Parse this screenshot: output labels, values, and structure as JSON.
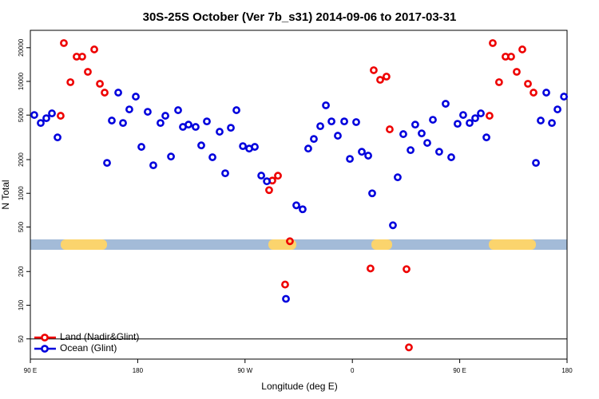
{
  "chart_data": {
    "type": "scatter",
    "title": "30S-25S October (Ver 7b_s31)   2014-09-06 to 2017-03-31",
    "x_label": "Longitude (deg E)",
    "y_label": "N Total",
    "y_scale": "log",
    "legend": "bottom-left",
    "xlim": [
      90,
      540
    ],
    "ylim": [
      33,
      28600
    ],
    "xticks": [
      {
        "value": 90,
        "label": "90 E"
      },
      {
        "value": 180,
        "label": "180"
      },
      {
        "value": 270,
        "label": "90 W"
      },
      {
        "value": 360,
        "label": "0"
      },
      {
        "value": 450,
        "label": "90 E"
      },
      {
        "value": 540,
        "label": "180"
      }
    ],
    "yticks": [
      50,
      100,
      200,
      500,
      1000,
      2000,
      5000,
      10000,
      20000
    ],
    "reference_line": 50,
    "series": [
      {
        "name": "Land (Nadir&Glint)",
        "color": "#ee0000",
        "x": [
          118.1,
          123.6,
          128.8,
          133.5,
          138.2,
          143.6,
          148.3,
          152.3,
          115.4,
          290.2,
          292.9,
          297.6,
          303.6,
          307.6,
          375.2,
          377.9,
          383.3,
          388.6,
          391.3,
          405.4,
          407.4,
          475.0,
          477.7,
          483.0,
          488.4,
          493.1,
          497.8,
          502.5,
          507.2,
          511.9
        ],
        "values": [
          22000,
          9840,
          16640,
          16640,
          12180,
          19300,
          9520,
          7940,
          4930,
          1068,
          1300,
          1436,
          153,
          373,
          213,
          12590,
          10330,
          11040,
          3730,
          210,
          42,
          4930,
          22000,
          9840,
          16640,
          16640,
          12180,
          19300,
          9520,
          7940
        ]
      },
      {
        "name": "Ocean (Glint)",
        "color": "#0000dd",
        "x": [
          93.3,
          98.7,
          103.4,
          108.1,
          112.8,
          154.3,
          158.3,
          163.7,
          167.7,
          173.0,
          178.4,
          183.1,
          188.4,
          193.1,
          199.1,
          203.2,
          207.9,
          213.9,
          217.9,
          222.6,
          228.6,
          233.3,
          238.0,
          242.7,
          248.7,
          253.4,
          258.1,
          262.8,
          268.2,
          273.5,
          278.2,
          283.6,
          288.3,
          304.3,
          313.0,
          318.3,
          323.0,
          327.7,
          333.1,
          337.8,
          342.5,
          347.8,
          353.2,
          357.9,
          363.2,
          367.9,
          373.3,
          376.6,
          394.0,
          398.0,
          402.7,
          408.8,
          412.7,
          418.1,
          422.8,
          427.5,
          432.8,
          438.2,
          442.9,
          448.2,
          452.9,
          458.3,
          463.0,
          467.7,
          472.4,
          513.9,
          517.9,
          522.6,
          527.3,
          532.0,
          537.4
        ],
        "values": [
          5010,
          4250,
          4690,
          5180,
          3160,
          1870,
          4470,
          7940,
          4250,
          5620,
          7310,
          2600,
          5350,
          1780,
          4250,
          4930,
          2130,
          5530,
          3920,
          4110,
          3920,
          2680,
          4390,
          2100,
          3550,
          1510,
          3850,
          5530,
          2640,
          2510,
          2600,
          1440,
          1280,
          114,
          781,
          720,
          2510,
          3060,
          3980,
          6110,
          4390,
          3270,
          4390,
          2030,
          4330,
          2350,
          2170,
          1000,
          518,
          1390,
          3380,
          2430,
          4110,
          3430,
          2820,
          4540,
          2350,
          6310,
          2100,
          4180,
          5010,
          4250,
          4690,
          5180,
          3160,
          1870,
          4470,
          7940,
          4250,
          5620,
          7310
        ]
      }
    ]
  }
}
